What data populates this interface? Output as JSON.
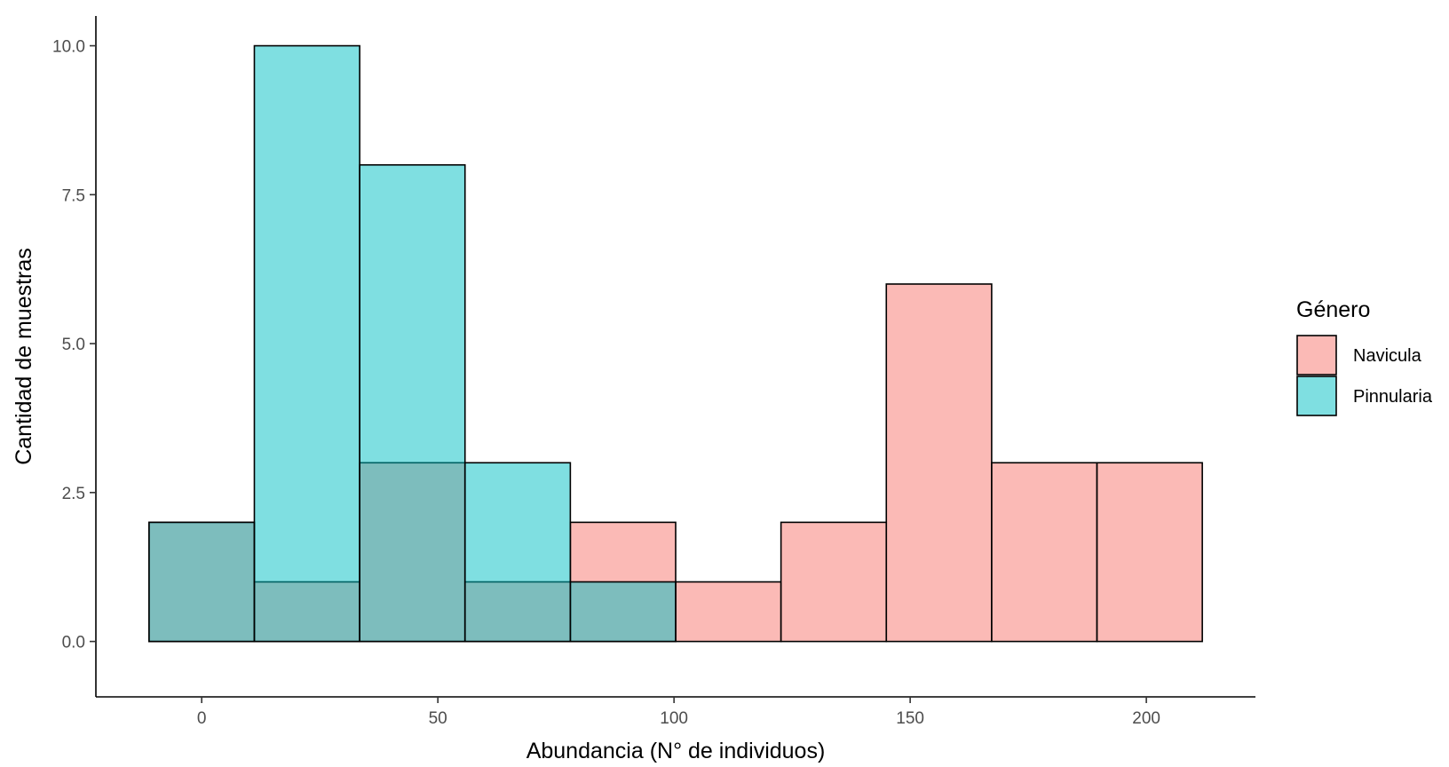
{
  "chart_data": {
    "type": "bar",
    "subtype": "histogram-overlay",
    "title": "",
    "xlabel": "Abundancia (N° de individuos)",
    "ylabel": "Cantidad de muestras",
    "xlim": [
      -22.4,
      223.1
    ],
    "ylim": [
      -0.93,
      10.5
    ],
    "x_ticks": [
      0,
      50,
      100,
      150,
      200
    ],
    "x_tick_labels": [
      "0",
      "50",
      "100",
      "150",
      "200"
    ],
    "y_ticks": [
      0,
      2.5,
      5,
      7.5,
      10
    ],
    "y_tick_labels": [
      "0.0",
      "2.5",
      "5.0",
      "7.5",
      "10.0"
    ],
    "grid": false,
    "legend_position": "right",
    "legend_title": "Género",
    "bin_edges": [
      -11.15,
      11.15,
      33.45,
      55.75,
      78.05,
      100.35,
      122.65,
      144.95,
      167.25,
      189.55,
      211.85
    ],
    "series": [
      {
        "name": "Navicula",
        "color": "#F8766D",
        "counts": [
          2,
          1,
          3,
          1,
          2,
          1,
          2,
          6,
          3,
          3
        ]
      },
      {
        "name": "Pinnularia",
        "color": "#00BFC4",
        "counts": [
          2,
          10,
          8,
          3,
          1,
          0,
          0,
          0,
          0,
          0
        ]
      }
    ],
    "fill_opacity": 0.5
  }
}
